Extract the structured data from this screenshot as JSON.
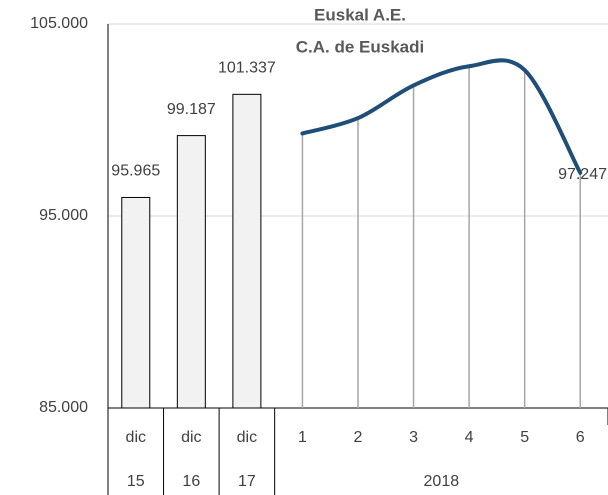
{
  "chart_data": {
    "type": "bar-line",
    "title": "Euskal A.E.",
    "subtitle": "C.A. de Euskadi",
    "groups": [
      {
        "label": "15",
        "categories": [
          "dic"
        ]
      },
      {
        "label": "16",
        "categories": [
          "dic"
        ]
      },
      {
        "label": "17",
        "categories": [
          "dic"
        ]
      },
      {
        "label": "2018",
        "categories": [
          "1",
          "2",
          "3",
          "4",
          "5",
          "6"
        ]
      }
    ],
    "series": [
      {
        "type": "bar",
        "color": "#f2f2f2",
        "values": [
          95.965,
          99.187,
          101.337,
          null,
          null,
          null,
          null,
          null,
          null
        ],
        "data_labels": "all"
      },
      {
        "type": "line",
        "color": "#1f4e79",
        "values": [
          null,
          null,
          null,
          99.3,
          100.1,
          101.8,
          102.8,
          102.6,
          97.247
        ],
        "data_labels": "last",
        "drop_lines": true
      }
    ],
    "ylim": [
      85,
      105
    ],
    "yticks": [
      {
        "value": 85,
        "label": "85.000"
      },
      {
        "value": 95,
        "label": "95.000"
      },
      {
        "value": 105,
        "label": "105.000"
      }
    ],
    "grid": true
  }
}
